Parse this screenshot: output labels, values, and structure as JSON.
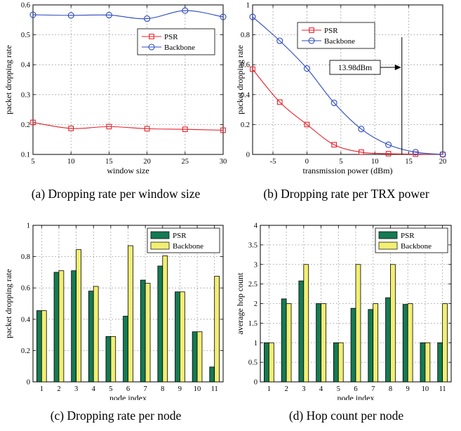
{
  "captions": {
    "a": "(a) Dropping rate per window size",
    "b": "(b) Dropping rate per TRX power",
    "c": "(c) Dropping rate per node",
    "d": "(d) Hop count per node"
  },
  "colors": {
    "psr_line": "#e8202a",
    "backbone_line": "#2b48c0",
    "psr_bar": "#157a53",
    "backbone_bar": "#f2ef72"
  },
  "chart_data": [
    {
      "id": "a",
      "type": "line",
      "xlabel": "window size",
      "ylabel": "packet dropping rate",
      "xlim": [
        5,
        30
      ],
      "ylim": [
        0.1,
        0.6
      ],
      "xticks": [
        5,
        10,
        15,
        20,
        25,
        30
      ],
      "yticks": [
        0.1,
        0.2,
        0.3,
        0.4,
        0.5,
        0.6
      ],
      "grid": true,
      "legend_position": "top-right",
      "x": [
        5,
        10,
        15,
        20,
        25,
        30
      ],
      "series": [
        {
          "name": "PSR",
          "marker": "square",
          "values": [
            0.207,
            0.187,
            0.193,
            0.186,
            0.184,
            0.181
          ]
        },
        {
          "name": "Backbone",
          "marker": "circle",
          "values": [
            0.567,
            0.565,
            0.566,
            0.554,
            0.581,
            0.56
          ]
        }
      ]
    },
    {
      "id": "b",
      "type": "line",
      "xlabel": "transmission power (dBm)",
      "ylabel": "packet dropping rate",
      "xlim": [
        -8,
        20
      ],
      "ylim": [
        0,
        1
      ],
      "xticks": [
        -5,
        0,
        5,
        10,
        15,
        20
      ],
      "yticks": [
        0,
        0.2,
        0.4,
        0.6,
        0.8,
        1
      ],
      "grid": true,
      "legend_position": "top-right",
      "x": [
        -8,
        -4,
        0,
        4,
        8,
        12,
        16,
        20
      ],
      "series": [
        {
          "name": "PSR",
          "marker": "square",
          "values": [
            0.57,
            0.35,
            0.2,
            0.065,
            0.015,
            0.005,
            0.002,
            0
          ]
        },
        {
          "name": "Backbone",
          "marker": "circle",
          "values": [
            0.92,
            0.76,
            0.575,
            0.345,
            0.17,
            0.065,
            0.015,
            0
          ]
        }
      ],
      "annotation": {
        "text": "13.98dBm",
        "x": 13.98
      }
    },
    {
      "id": "c",
      "type": "bar",
      "xlabel": "node index",
      "ylabel": "packet dropping rate",
      "ylim": [
        0,
        1
      ],
      "yticks": [
        0,
        0.2,
        0.4,
        0.6,
        0.8,
        1
      ],
      "grid": true,
      "legend_position": "top-right",
      "categories": [
        "1",
        "2",
        "3",
        "4",
        "5",
        "6",
        "7",
        "8",
        "9",
        "10",
        "11"
      ],
      "series": [
        {
          "name": "PSR",
          "values": [
            0.455,
            0.7,
            0.71,
            0.58,
            0.29,
            0.42,
            0.65,
            0.74,
            0.575,
            0.32,
            0.095
          ]
        },
        {
          "name": "Backbone",
          "values": [
            0.455,
            0.71,
            0.845,
            0.61,
            0.29,
            0.87,
            0.63,
            0.805,
            0.575,
            0.32,
            0.675
          ]
        }
      ]
    },
    {
      "id": "d",
      "type": "bar",
      "xlabel": "node index",
      "ylabel": "average hop count",
      "ylim": [
        0,
        4
      ],
      "yticks": [
        0,
        0.5,
        1,
        1.5,
        2,
        2.5,
        3,
        3.5,
        4
      ],
      "grid": true,
      "legend_position": "top-right",
      "categories": [
        "1",
        "2",
        "3",
        "4",
        "5",
        "6",
        "7",
        "8",
        "9",
        "10",
        "11"
      ],
      "series": [
        {
          "name": "PSR",
          "values": [
            1.0,
            2.12,
            2.58,
            2.0,
            1.0,
            1.88,
            1.85,
            2.15,
            1.98,
            1.0,
            1.0
          ]
        },
        {
          "name": "Backbone",
          "values": [
            1.0,
            2.0,
            3.0,
            2.0,
            1.0,
            3.0,
            2.0,
            3.0,
            2.0,
            1.0,
            2.0
          ]
        }
      ]
    }
  ]
}
